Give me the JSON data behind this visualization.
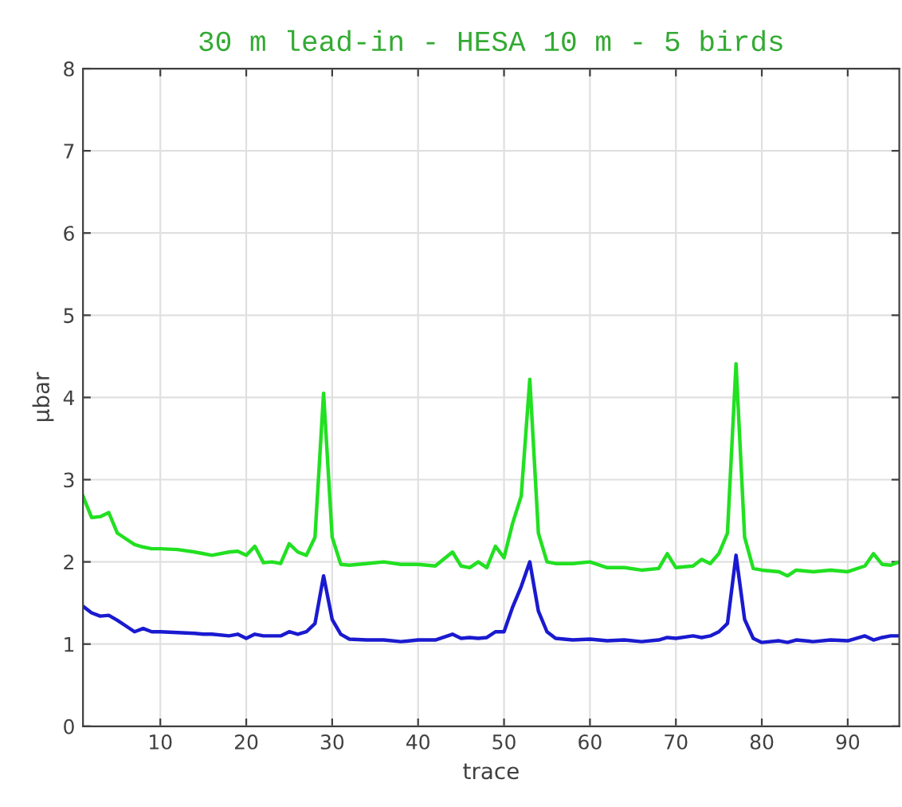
{
  "chart_data": {
    "type": "line",
    "title": "30 m lead-in - HESA 10 m - 5 birds",
    "xlabel": "trace",
    "ylabel": "µbar",
    "x": [
      1,
      2,
      3,
      4,
      5,
      6,
      7,
      8,
      9,
      10,
      12,
      14,
      15,
      16,
      18,
      19,
      20,
      21,
      22,
      23,
      24,
      25,
      26,
      27,
      28,
      29,
      30,
      31,
      32,
      34,
      36,
      38,
      40,
      42,
      44,
      45,
      46,
      47,
      48,
      49,
      50,
      51,
      52,
      53,
      54,
      55,
      56,
      58,
      60,
      62,
      64,
      66,
      68,
      69,
      70,
      72,
      73,
      74,
      75,
      76,
      77,
      78,
      79,
      80,
      82,
      83,
      84,
      86,
      88,
      90,
      92,
      93,
      94,
      95,
      96
    ],
    "series": [
      {
        "color": "#22e022",
        "values": [
          2.8,
          2.54,
          2.55,
          2.6,
          2.35,
          2.28,
          2.21,
          2.18,
          2.16,
          2.16,
          2.15,
          2.12,
          2.1,
          2.08,
          2.12,
          2.13,
          2.08,
          2.19,
          1.99,
          2.0,
          1.98,
          2.22,
          2.12,
          2.08,
          2.3,
          4.05,
          2.3,
          1.97,
          1.96,
          1.98,
          2.0,
          1.97,
          1.97,
          1.95,
          2.12,
          1.95,
          1.93,
          2.0,
          1.93,
          2.19,
          2.05,
          2.47,
          2.8,
          4.22,
          2.35,
          2.0,
          1.98,
          1.98,
          2.0,
          1.93,
          1.93,
          1.9,
          1.92,
          2.1,
          1.93,
          1.95,
          2.03,
          1.98,
          2.1,
          2.35,
          4.41,
          2.3,
          1.92,
          1.9,
          1.88,
          1.83,
          1.9,
          1.88,
          1.9,
          1.88,
          1.95,
          2.1,
          1.97,
          1.96,
          2.0
        ]
      },
      {
        "color": "#1a1ad0",
        "values": [
          1.46,
          1.38,
          1.34,
          1.35,
          1.29,
          1.22,
          1.15,
          1.19,
          1.15,
          1.15,
          1.14,
          1.13,
          1.12,
          1.12,
          1.1,
          1.12,
          1.07,
          1.12,
          1.1,
          1.1,
          1.1,
          1.15,
          1.12,
          1.15,
          1.25,
          1.83,
          1.3,
          1.12,
          1.06,
          1.05,
          1.05,
          1.03,
          1.05,
          1.05,
          1.12,
          1.07,
          1.08,
          1.07,
          1.08,
          1.15,
          1.15,
          1.45,
          1.7,
          2.0,
          1.4,
          1.15,
          1.07,
          1.05,
          1.06,
          1.04,
          1.05,
          1.03,
          1.05,
          1.08,
          1.07,
          1.1,
          1.08,
          1.1,
          1.15,
          1.25,
          2.08,
          1.3,
          1.07,
          1.02,
          1.04,
          1.02,
          1.05,
          1.03,
          1.05,
          1.04,
          1.1,
          1.05,
          1.08,
          1.1,
          1.1
        ]
      }
    ],
    "xlim": [
      1,
      96
    ],
    "xticks": [
      10,
      20,
      30,
      40,
      50,
      60,
      70,
      80,
      90
    ],
    "ylim": [
      0,
      8
    ],
    "yticks": [
      0,
      1,
      2,
      3,
      4,
      5,
      6,
      7,
      8
    ],
    "grid": true,
    "legend": false,
    "marker": "none",
    "line_style": "solid"
  }
}
